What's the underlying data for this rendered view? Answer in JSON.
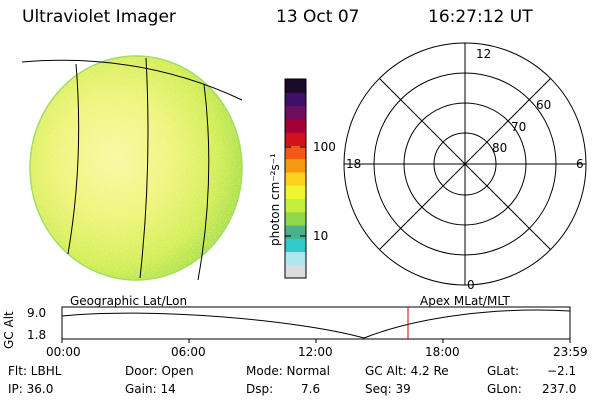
{
  "header": {
    "instrument": "Ultraviolet Imager",
    "date": "13 Oct 07",
    "time": "16:27:12 UT"
  },
  "left_panel": {
    "label": "Geographic Lat/Lon"
  },
  "right_panel": {
    "label": "Apex MLat/MLT",
    "mlt_labels": {
      "top": "12",
      "left": "18",
      "right": "6",
      "bottom": "0"
    },
    "mlat_labels": [
      "60",
      "70",
      "80"
    ]
  },
  "colorbar": {
    "unit_label": "photon cm⁻²s⁻¹",
    "tick_labels": [
      "100",
      "10"
    ],
    "colors": [
      "#dcdcdc",
      "#aee8ee",
      "#33c9c9",
      "#48b38a",
      "#8fd94a",
      "#c4ef3f",
      "#eef531",
      "#fbd21e",
      "#f79712",
      "#f05a16",
      "#d3101e",
      "#a10038",
      "#6d0d5e",
      "#401068",
      "#1a0a2a"
    ]
  },
  "timeline": {
    "y_axis_label": "GC Alt",
    "y_top": "9.0",
    "y_bottom": "1.8",
    "x_ticks": [
      "00:00",
      "06:00",
      "12:00",
      "18:00",
      "23:59"
    ],
    "current_time_marker_color": "#cc0000"
  },
  "info": {
    "filter": "Flt: LBHL",
    "ip": "IP: 36.0",
    "door": "Door: Open",
    "gain": "Gain: 14",
    "mode": "Mode: Normal",
    "dsp_label": "Dsp:",
    "dsp_value": "7.6",
    "gc_alt": "GC Alt: 4.2 Re",
    "seq": "Seq: 39",
    "glat_label": "GLat:",
    "glat_value": "−2.1",
    "glon_label": "GLon:",
    "glon_value": "237.0"
  },
  "colors": {
    "disk_core": "#f2f77a",
    "disk_edge": "#b9e84a",
    "grid": "#000000"
  }
}
